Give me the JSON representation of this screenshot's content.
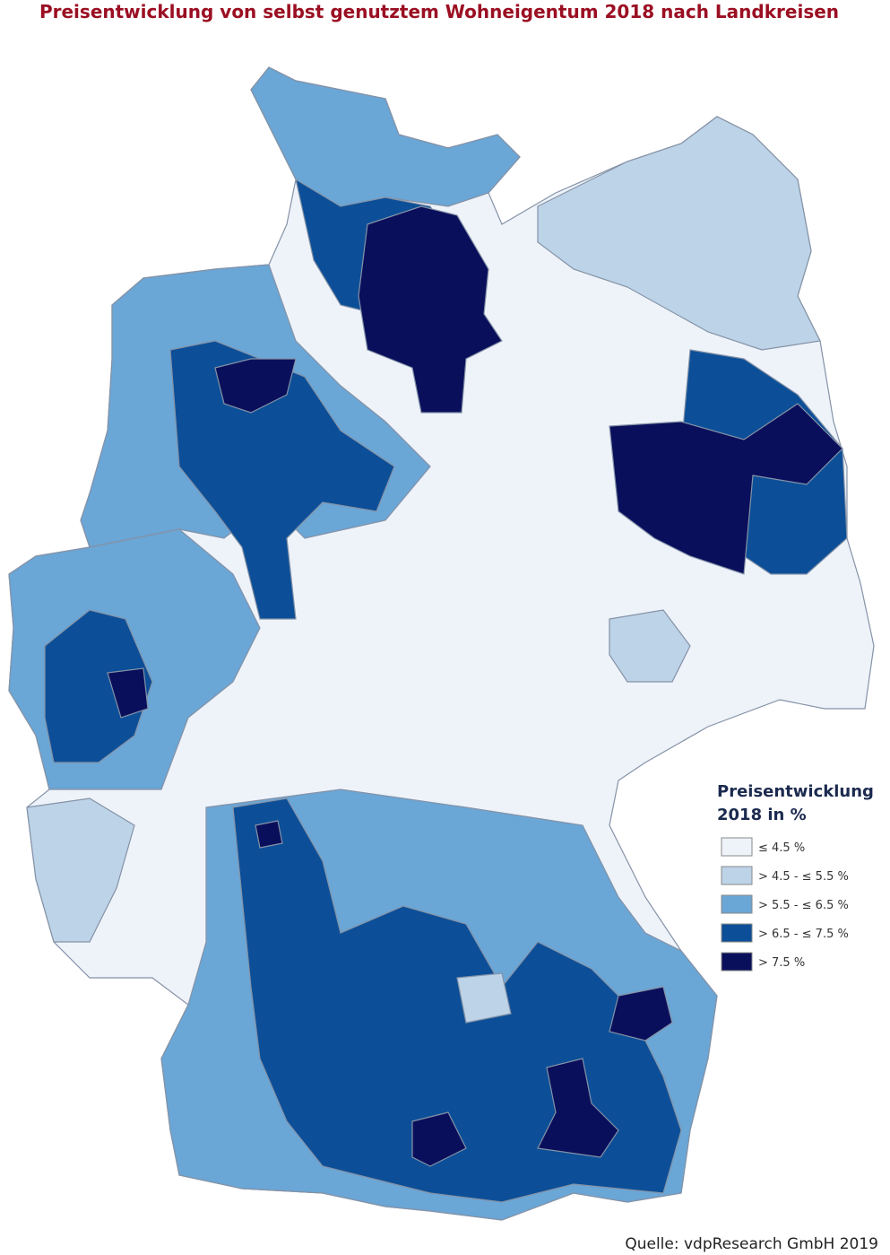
{
  "header": {
    "title": "Preisentwicklung von selbst genutztem Wohneigentum 2018 nach Landkreisen"
  },
  "legend": {
    "title_lines": [
      "Preisentwicklung",
      "2018 in %"
    ],
    "items": [
      {
        "label": "≤ 4.5 %",
        "color": "#eef3fa"
      },
      {
        "label": "> 4.5 - ≤ 5.5 %",
        "color": "#bcd3e8"
      },
      {
        "label": "> 5.5 - ≤ 6.5 %",
        "color": "#6aa6d6"
      },
      {
        "label": "> 6.5 - ≤ 7.5 %",
        "color": "#0c4f98"
      },
      {
        "label": "> 7.5 %",
        "color": "#0a0f5c"
      }
    ]
  },
  "source": "Quelle: vdpResearch GmbH 2019"
}
